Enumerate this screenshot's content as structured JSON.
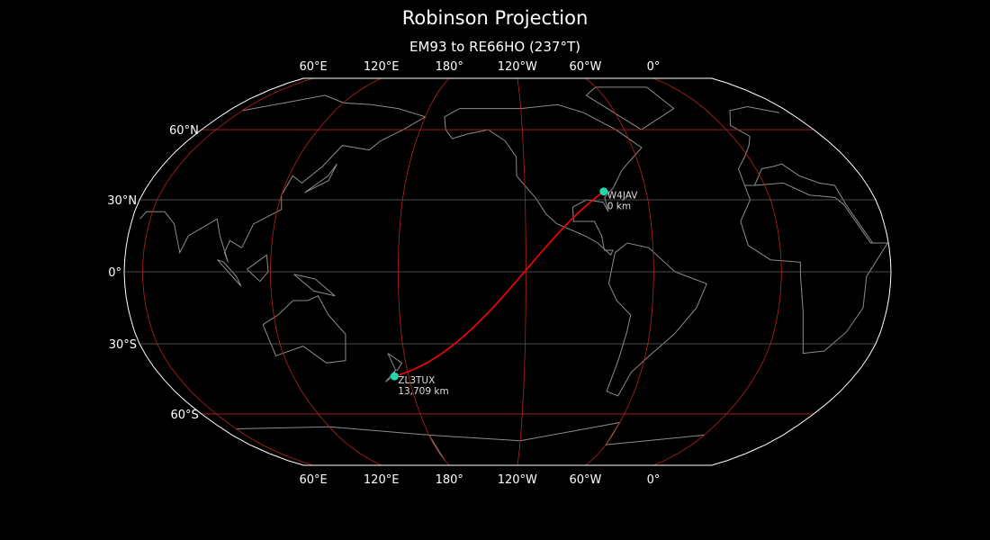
{
  "title": "Robinson Projection",
  "subtitle": "EM93 to RE66HO (237°T)",
  "map": {
    "projection": "Robinson",
    "lon_ticks": [
      {
        "lon": 60,
        "label": "60°E"
      },
      {
        "lon": 120,
        "label": "120°E"
      },
      {
        "lon": 180,
        "label": "180°"
      },
      {
        "lon": -120,
        "label": "120°W"
      },
      {
        "lon": -60,
        "label": "60°W"
      },
      {
        "lon": 0,
        "label": "0°"
      }
    ],
    "lat_ticks": [
      {
        "lat": 60,
        "label": "60°N"
      },
      {
        "lat": 30,
        "label": "30°N"
      },
      {
        "lat": 0,
        "label": "0°"
      },
      {
        "lat": -30,
        "label": "30°S"
      },
      {
        "lat": -60,
        "label": "60°S"
      }
    ],
    "colors": {
      "background": "#000000",
      "coastline": "#8c8c8c",
      "graticule_lat": "#666666",
      "graticule_lon": "#b22222",
      "path": "#ff0000",
      "station": "#20d8a8",
      "border": "#ffffff"
    },
    "stations": [
      {
        "call": "W4JAV",
        "distance": "0 km",
        "lat": 33.5,
        "lon": -81
      },
      {
        "call": "ZL3TUX",
        "distance": "13,709 km",
        "lat": -43.6,
        "lon": 172.6
      }
    ]
  }
}
